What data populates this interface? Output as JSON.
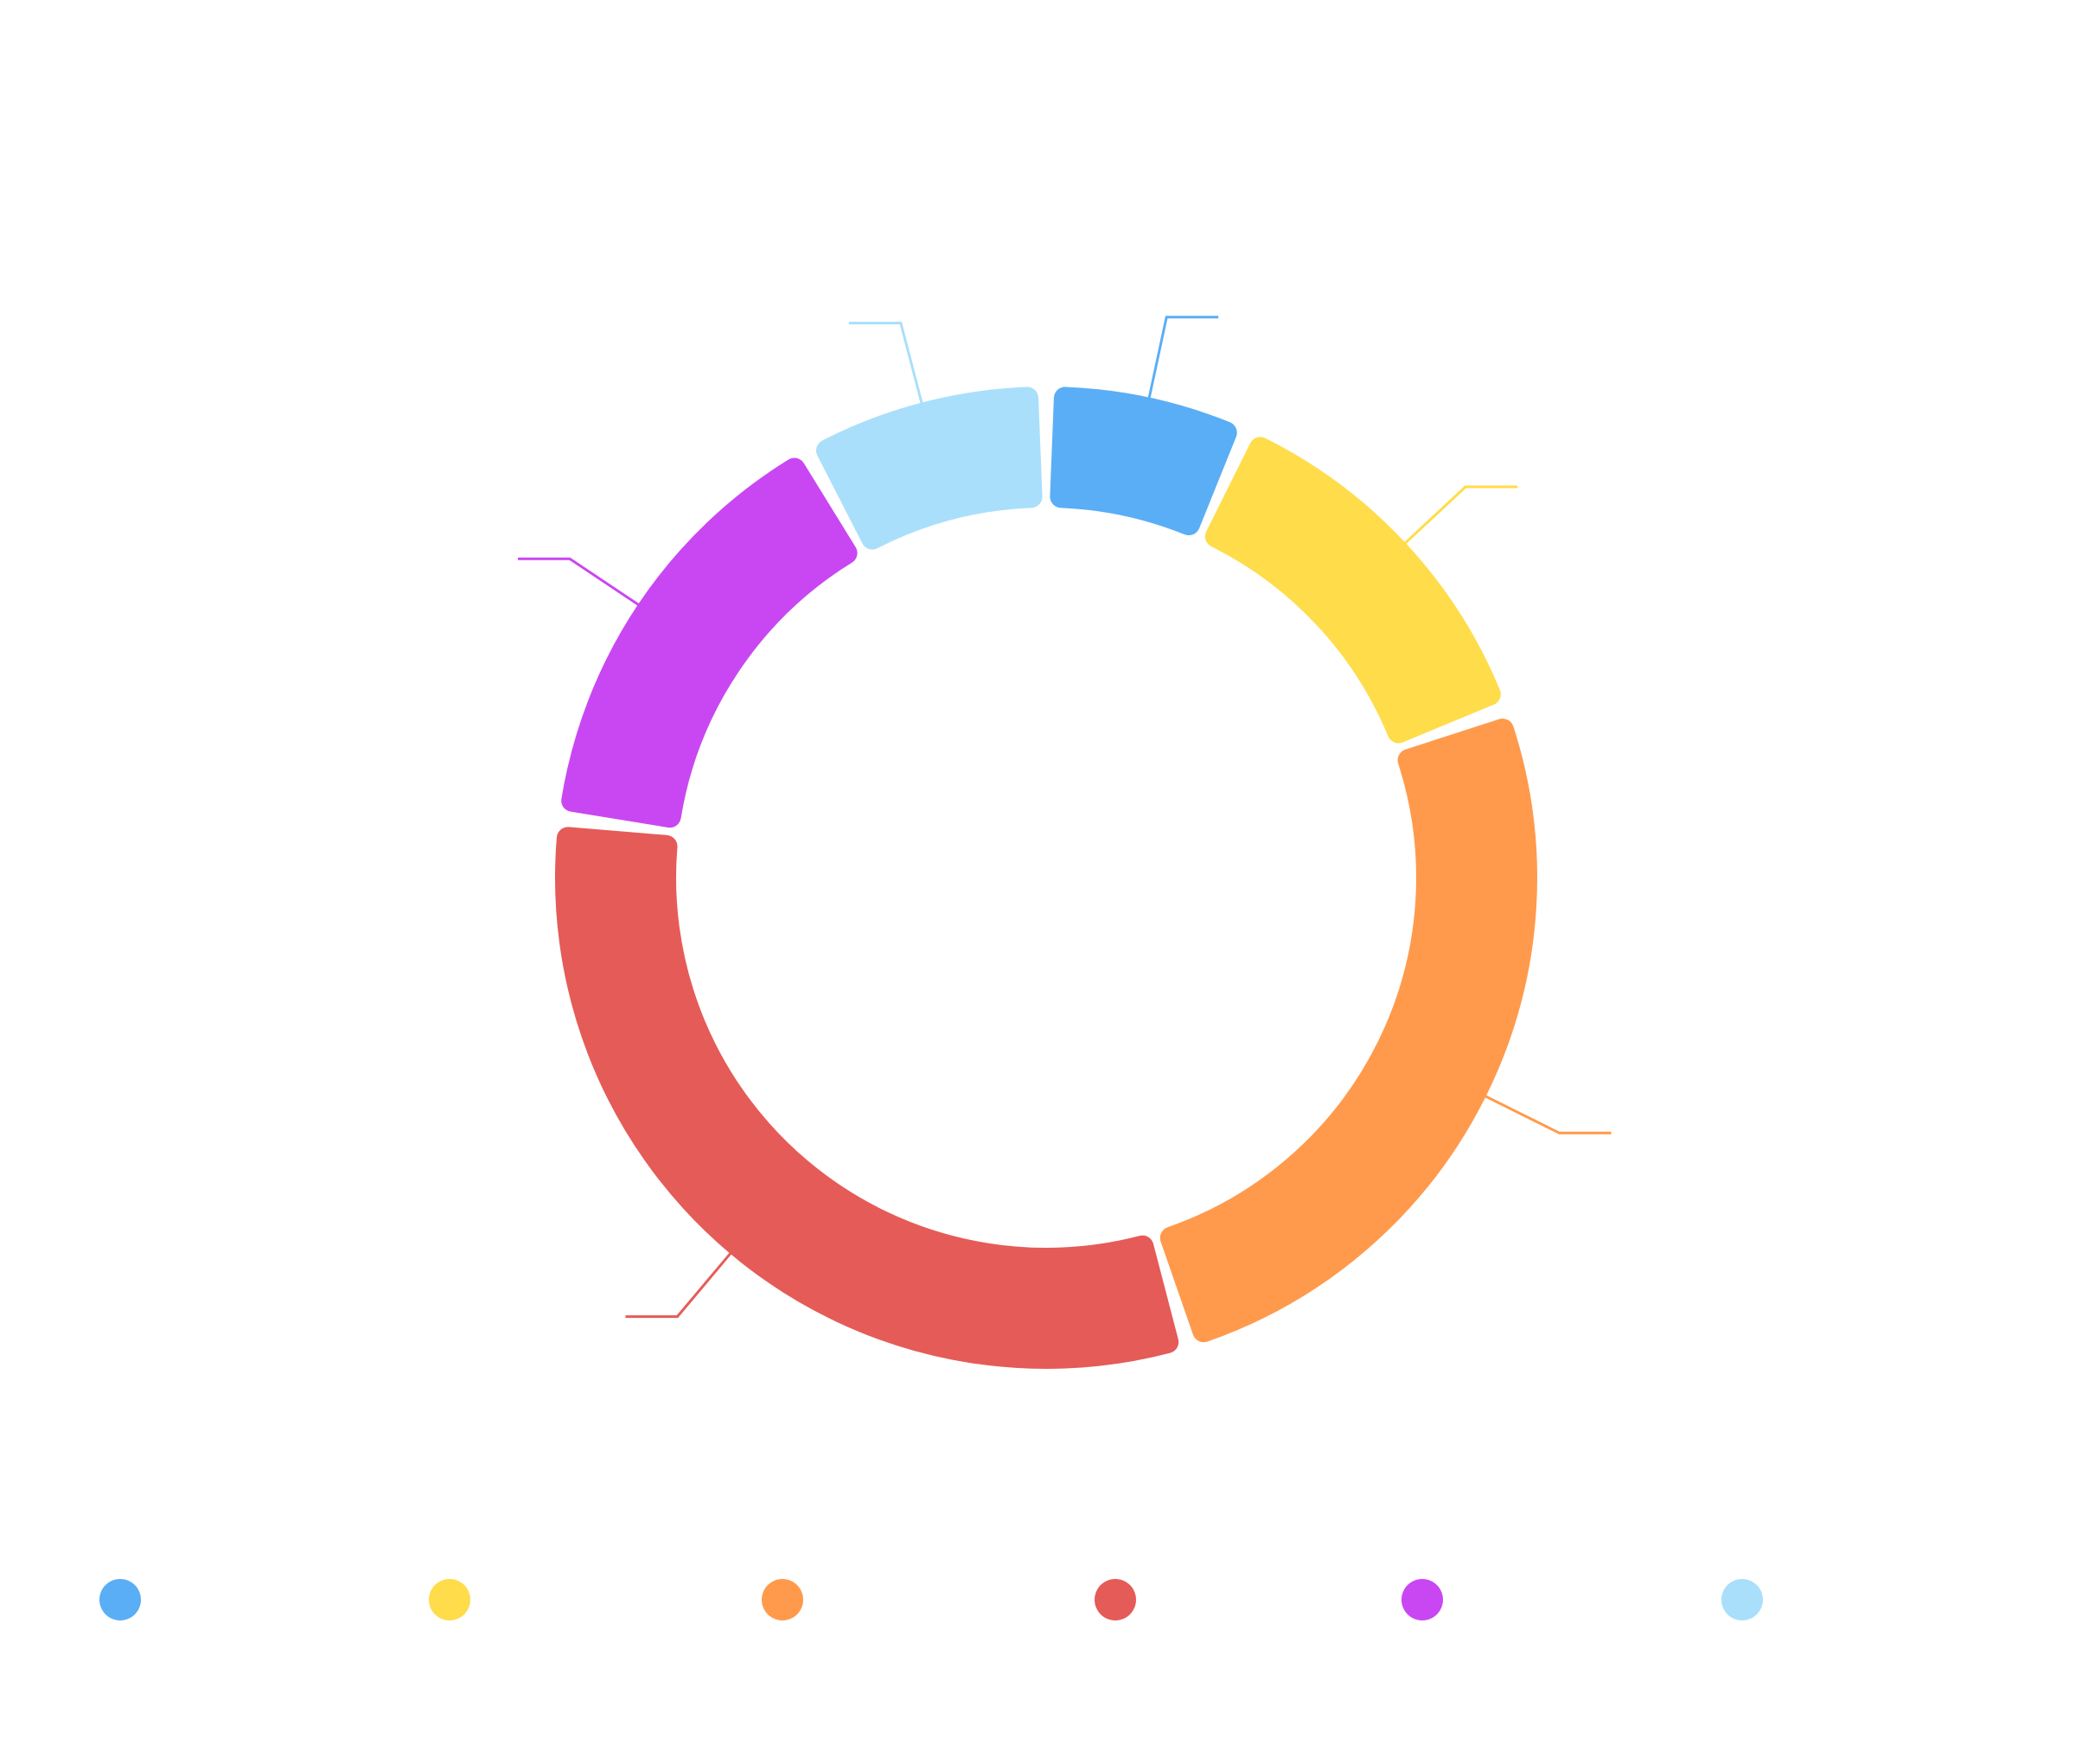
{
  "colors": {
    "background": "#ffffff",
    "segment": [
      "#5aaef5",
      "#ffdc4a",
      "#ff9a4c",
      "#e55b57",
      "#c947f2",
      "#a9dffb"
    ]
  },
  "chart_data": {
    "type": "pie",
    "variant": "donut",
    "title": "",
    "shares_percent": [
      6.6,
      12.4,
      25.4,
      31.0,
      14.6,
      8.0
    ],
    "segments": [
      {
        "color": "#5aaef5"
      },
      {
        "color": "#ffdc4a"
      },
      {
        "color": "#ff9a4c"
      },
      {
        "color": "#e55b57"
      },
      {
        "color": "#c947f2"
      },
      {
        "color": "#a9dffb"
      }
    ],
    "legend": {
      "placement": "bottom",
      "colors": [
        "#5aaef5",
        "#ffdc4a",
        "#ff9a4c",
        "#e55b57",
        "#c947f2",
        "#a9dffb"
      ]
    },
    "leader_lines": true,
    "rounded_segment_corners": true
  }
}
